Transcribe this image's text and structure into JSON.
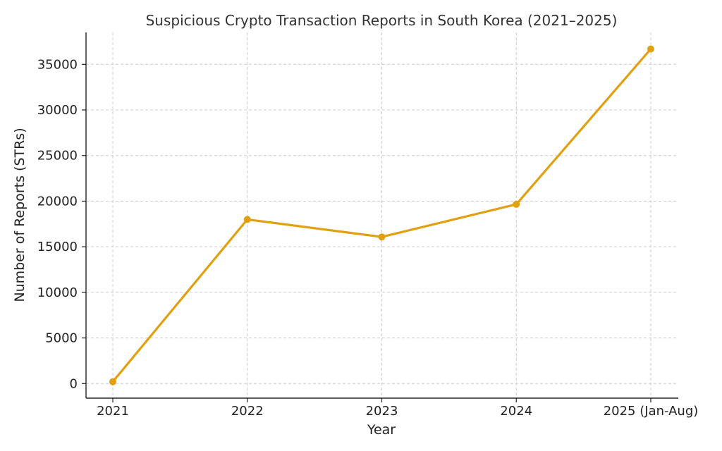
{
  "chart_data": {
    "type": "line",
    "title": "Suspicious Crypto Transaction Reports in South Korea (2021–2025)",
    "xlabel": "Year",
    "ylabel": "Number of Reports (STRs)",
    "categories": [
      "2021",
      "2022",
      "2023",
      "2024",
      "2025 (Jan-Aug)"
    ],
    "series": [
      {
        "values": [
          199,
          17996,
          16076,
          19658,
          36684
        ]
      }
    ],
    "yticks": [
      0,
      5000,
      10000,
      15000,
      20000,
      25000,
      30000,
      35000
    ],
    "ylim": [
      -1600,
      38500
    ],
    "grid": true,
    "line_color": "#E0A010"
  }
}
